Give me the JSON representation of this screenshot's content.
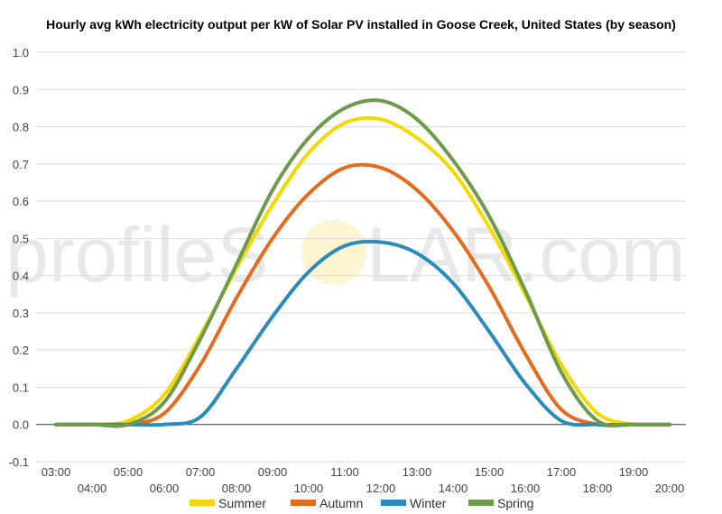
{
  "watermark": {
    "left": "profileS",
    "right": "LAR.com",
    "sun_color": "#f6d44a"
  },
  "chart_data": {
    "type": "line",
    "title": "Hourly avg kWh electricity output per kW of Solar PV installed in Goose Creek, United States (by season)",
    "xlabel": "",
    "ylabel": "",
    "ylim": [
      -0.1,
      1.0
    ],
    "yticks": [
      "-0.1",
      "0.0",
      "0.1",
      "0.2",
      "0.3",
      "0.4",
      "0.5",
      "0.6",
      "0.7",
      "0.8",
      "0.9",
      "1.0"
    ],
    "x": [
      "03:00",
      "04:00",
      "05:00",
      "06:00",
      "07:00",
      "08:00",
      "09:00",
      "10:00",
      "11:00",
      "12:00",
      "13:00",
      "14:00",
      "15:00",
      "16:00",
      "17:00",
      "18:00",
      "19:00",
      "20:00"
    ],
    "grid": true,
    "legend_position": "bottom",
    "series": [
      {
        "name": "Summer",
        "color": "#f5d800",
        "values": [
          0.0,
          0.0,
          0.01,
          0.08,
          0.24,
          0.42,
          0.59,
          0.73,
          0.81,
          0.82,
          0.77,
          0.68,
          0.53,
          0.35,
          0.16,
          0.03,
          0.0,
          0.0
        ]
      },
      {
        "name": "Autumn",
        "color": "#e36c1e",
        "values": [
          0.0,
          0.0,
          0.0,
          0.03,
          0.16,
          0.34,
          0.5,
          0.62,
          0.69,
          0.69,
          0.63,
          0.52,
          0.37,
          0.19,
          0.04,
          0.0,
          0.0,
          0.0
        ]
      },
      {
        "name": "Winter",
        "color": "#2a8cbd",
        "values": [
          0.0,
          0.0,
          0.0,
          0.0,
          0.02,
          0.15,
          0.29,
          0.41,
          0.48,
          0.49,
          0.46,
          0.38,
          0.25,
          0.11,
          0.01,
          0.0,
          0.0,
          0.0
        ]
      },
      {
        "name": "Spring",
        "color": "#6e9a4c",
        "values": [
          0.0,
          0.0,
          0.0,
          0.06,
          0.23,
          0.43,
          0.63,
          0.77,
          0.85,
          0.87,
          0.82,
          0.71,
          0.56,
          0.36,
          0.14,
          0.01,
          0.0,
          0.0
        ]
      }
    ]
  }
}
